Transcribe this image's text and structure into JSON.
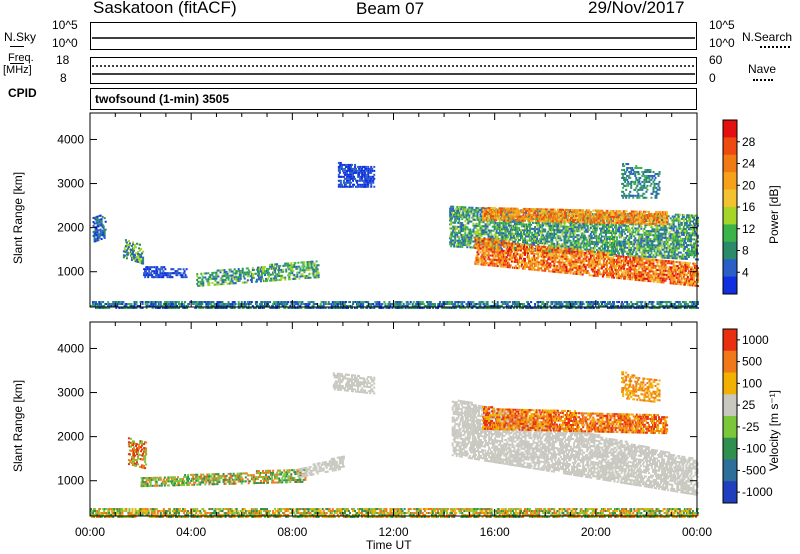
{
  "header": {
    "station": "Saskatoon (fitACF)",
    "beam": "Beam 07",
    "date": "29/Nov/2017"
  },
  "strips": {
    "nsky_label": "N.Sky",
    "nsky_tick_top": "10^5",
    "nsky_tick_bottom": "10^0",
    "nsearch_label": "N.Search",
    "nsearch_tick_top": "10^5",
    "nsearch_tick_bottom": "10^0",
    "freq_label": "Freq.",
    "freq_unit": "[MHz]",
    "freq_tick_top": "18",
    "freq_tick_bottom": "8",
    "nave_label": "Nave",
    "nave_tick_top": "60",
    "nave_tick_bottom": "0",
    "cpid_label": "CPID",
    "cpid_value": "twofsound (1-min) 3505"
  },
  "chart_data": [
    {
      "type": "heatmap",
      "panel": "power",
      "ylabel": "Slant Range [km]",
      "yticks": [
        "1000",
        "2000",
        "3000",
        "4000"
      ],
      "ylim": [
        200,
        4600
      ],
      "colorbar": {
        "label": "Power [dB]",
        "ticks": [
          "4",
          "8",
          "12",
          "16",
          "20",
          "24",
          "28"
        ],
        "colors": [
          "#1030e0",
          "#2a5fc8",
          "#2a8a6a",
          "#39b34a",
          "#a6d52a",
          "#f2c230",
          "#f5a21a",
          "#f27a12",
          "#ee4a10",
          "#e41010"
        ]
      }
    },
    {
      "type": "heatmap",
      "panel": "velocity",
      "ylabel": "Slant Range [km]",
      "yticks": [
        "1000",
        "2000",
        "3000",
        "4000"
      ],
      "ylim": [
        200,
        4600
      ],
      "colorbar": {
        "label": "Velocity [m s⁻¹]",
        "ticks": [
          "1000",
          "500",
          "100",
          "25",
          "-25",
          "-100",
          "-500",
          "-1000"
        ],
        "colors": [
          "#1f3fbf",
          "#2e6e9a",
          "#2e8f4e",
          "#7ac83a",
          "#c8c8c0",
          "#f2b000",
          "#f07818",
          "#e83010"
        ]
      }
    }
  ],
  "xaxis": {
    "label": "Time UT",
    "ticks": [
      "00:00",
      "04:00",
      "08:00",
      "12:00",
      "16:00",
      "20:00",
      "00:00"
    ]
  }
}
